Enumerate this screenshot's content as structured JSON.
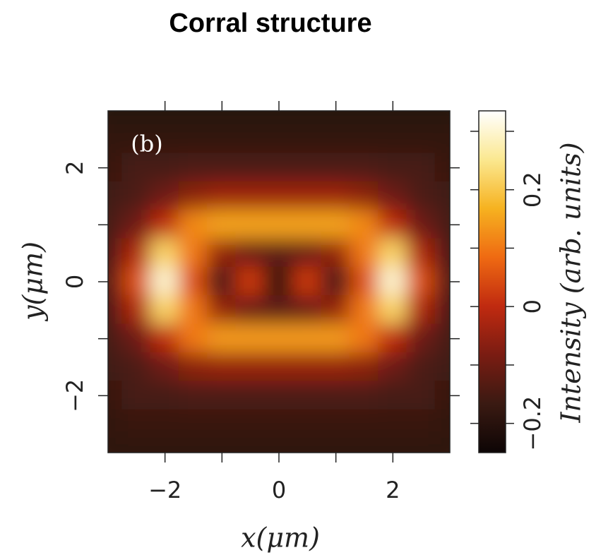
{
  "chart_data": {
    "type": "heatmap",
    "title": "Corral structure",
    "panel_label": "(b)",
    "x_label": "x(μm)",
    "y_label": "y(μm)",
    "colorbar_label": "Intensity (arb. units)",
    "x": [
      -3,
      -2.5,
      -2,
      -1.5,
      -1,
      -0.5,
      0,
      0.5,
      1,
      1.5,
      2,
      2.5,
      3
    ],
    "y": [
      3,
      2.5,
      2,
      1.5,
      1,
      0.5,
      0,
      -0.5,
      -1,
      -1.5,
      -2,
      -2.5,
      -3
    ],
    "z": [
      [
        -0.2,
        -0.2,
        -0.2,
        -0.2,
        -0.2,
        -0.2,
        -0.2,
        -0.2,
        -0.2,
        -0.2,
        -0.2,
        -0.2,
        -0.2
      ],
      [
        -0.18,
        -0.18,
        -0.18,
        -0.18,
        -0.18,
        -0.18,
        -0.18,
        -0.18,
        -0.18,
        -0.18,
        -0.18,
        -0.18,
        -0.18
      ],
      [
        -0.17,
        -0.15,
        -0.15,
        -0.14,
        -0.14,
        -0.14,
        -0.14,
        -0.14,
        -0.14,
        -0.14,
        -0.15,
        -0.15,
        -0.17
      ],
      [
        -0.16,
        -0.14,
        -0.1,
        -0.06,
        -0.04,
        -0.04,
        -0.04,
        -0.04,
        -0.04,
        -0.06,
        -0.1,
        -0.14,
        -0.16
      ],
      [
        -0.15,
        -0.1,
        0.0,
        0.12,
        0.15,
        0.15,
        0.15,
        0.15,
        0.15,
        0.12,
        0.0,
        -0.1,
        -0.15
      ],
      [
        -0.14,
        -0.02,
        0.22,
        0.1,
        -0.05,
        -0.1,
        -0.12,
        -0.1,
        -0.05,
        0.1,
        0.22,
        -0.02,
        -0.14
      ],
      [
        -0.13,
        0.05,
        0.3,
        0.05,
        -0.15,
        0.02,
        -0.2,
        0.02,
        -0.15,
        0.05,
        0.3,
        0.05,
        -0.13
      ],
      [
        -0.14,
        -0.02,
        0.22,
        0.1,
        -0.05,
        -0.1,
        -0.12,
        -0.1,
        -0.05,
        0.1,
        0.22,
        -0.02,
        -0.14
      ],
      [
        -0.15,
        -0.1,
        0.0,
        0.1,
        0.14,
        0.14,
        0.14,
        0.14,
        0.14,
        0.1,
        0.0,
        -0.1,
        -0.15
      ],
      [
        -0.16,
        -0.14,
        -0.1,
        -0.06,
        -0.05,
        -0.05,
        -0.05,
        -0.05,
        -0.05,
        -0.06,
        -0.1,
        -0.14,
        -0.16
      ],
      [
        -0.17,
        -0.15,
        -0.15,
        -0.14,
        -0.14,
        -0.14,
        -0.14,
        -0.14,
        -0.14,
        -0.14,
        -0.15,
        -0.15,
        -0.17
      ],
      [
        -0.18,
        -0.17,
        -0.17,
        -0.17,
        -0.17,
        -0.17,
        -0.17,
        -0.17,
        -0.17,
        -0.17,
        -0.17,
        -0.17,
        -0.18
      ],
      [
        -0.19,
        -0.19,
        -0.19,
        -0.19,
        -0.19,
        -0.19,
        -0.19,
        -0.19,
        -0.19,
        -0.19,
        -0.19,
        -0.19,
        -0.19
      ]
    ],
    "xlim": [
      -3,
      3
    ],
    "ylim": [
      -3,
      3
    ],
    "xticks": [
      {
        "value": -2,
        "label": "−2"
      },
      0,
      2
    ],
    "yticks": [
      {
        "value": -2,
        "label": "−2"
      },
      0,
      2
    ],
    "minor_xticks": [
      -1,
      1
    ],
    "minor_yticks": [
      -1,
      1
    ],
    "clim": [
      -0.25,
      0.335
    ],
    "cticks": [
      {
        "value": -0.2,
        "label": "−0.2"
      },
      0,
      0.2
    ],
    "minor_cticks": [
      -0.1,
      0.1,
      0.3
    ],
    "colormap": [
      "#0d0505",
      "#3a1a12",
      "#7a1c12",
      "#c02a10",
      "#ef6a12",
      "#f6b220",
      "#fbe890",
      "#ffffff"
    ]
  }
}
